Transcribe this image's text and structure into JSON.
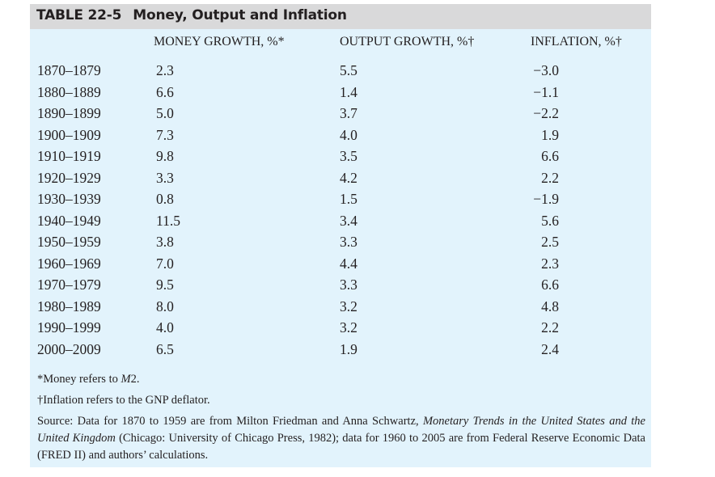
{
  "table": {
    "label": "TABLE 22-5",
    "title": "Money, Output and Inflation",
    "columns": [
      "",
      "MONEY GROWTH, %*",
      "OUTPUT GROWTH, %†",
      "INFLATION, %†"
    ],
    "rows": [
      [
        "1870–1879",
        "2.3",
        "5.5",
        "−3.0"
      ],
      [
        "1880–1889",
        "6.6",
        "1.4",
        "−1.1"
      ],
      [
        "1890–1899",
        "5.0",
        "3.7",
        "−2.2"
      ],
      [
        "1900–1909",
        "7.3",
        "4.0",
        "1.9"
      ],
      [
        "1910–1919",
        "9.8",
        "3.5",
        "6.6"
      ],
      [
        "1920–1929",
        "3.3",
        "4.2",
        "2.2"
      ],
      [
        "1930–1939",
        "0.8",
        "1.5",
        "−1.9"
      ],
      [
        "1940–1949",
        "11.5",
        "3.4",
        "5.6"
      ],
      [
        "1950–1959",
        "3.8",
        "3.3",
        "2.5"
      ],
      [
        "1960–1969",
        "7.0",
        "4.4",
        "2.3"
      ],
      [
        "1970–1979",
        "9.5",
        "3.3",
        "6.6"
      ],
      [
        "1980–1989",
        "8.0",
        "3.2",
        "4.8"
      ],
      [
        "1990–1999",
        "4.0",
        "3.2",
        "2.2"
      ],
      [
        "2000–2009",
        "6.5",
        "1.9",
        "2.4"
      ]
    ]
  },
  "notes": {
    "money_prefix": "*Money refers to ",
    "money_italic": "M",
    "money_suffix": "2.",
    "inflation": "†Inflation refers to the GNP deflator.",
    "source_1": "Source: Data for 1870 to 1959 are from Milton Friedman and Anna Schwartz, ",
    "source_italic": "Monetary Trends in the United States and the United Kingdom",
    "source_2": " (Chicago: University of Chicago Press, 1982); data for 1960 to 2005 are from Federal Reserve Economic Data (FRED II) and authors’ calculations."
  },
  "colors": {
    "header_bg": "#d9d9da",
    "table_bg": "#e2f3fc"
  }
}
